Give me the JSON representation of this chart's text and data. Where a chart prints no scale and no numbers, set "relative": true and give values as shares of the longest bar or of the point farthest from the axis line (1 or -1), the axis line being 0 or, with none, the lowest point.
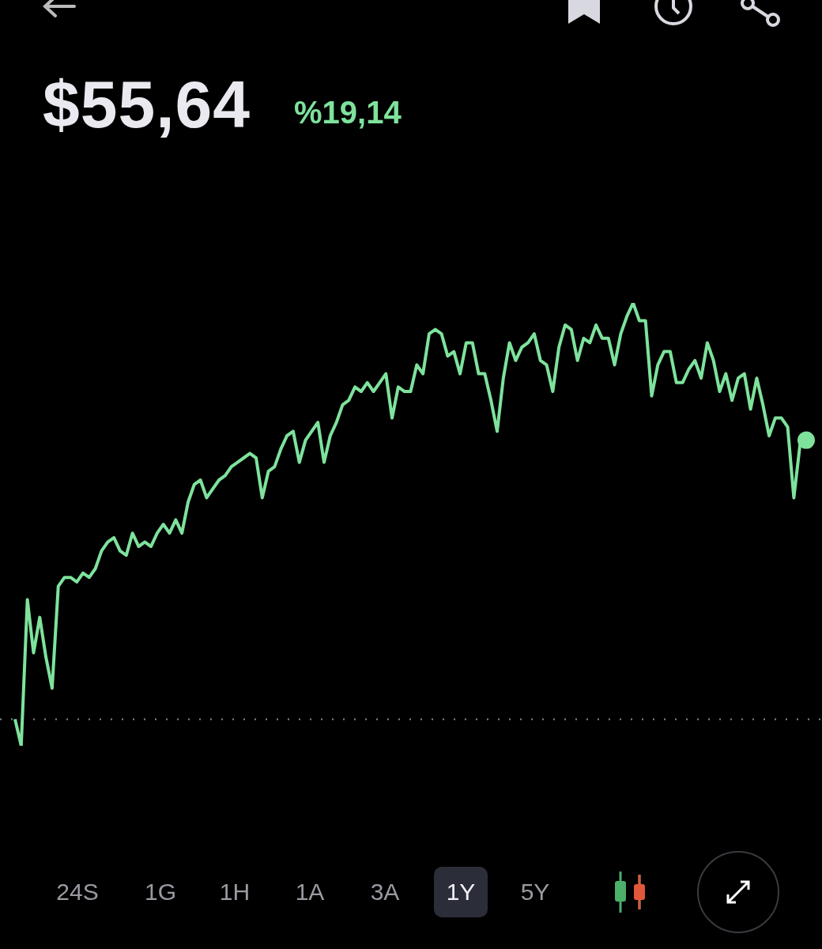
{
  "chart_data": {
    "type": "line",
    "title": "$55,64",
    "subtitle": "%19,14",
    "relative": true,
    "legend": false,
    "line_style": "solid",
    "categories": [
      null,
      null,
      null,
      null,
      null,
      null,
      null,
      null,
      null,
      null,
      null,
      null,
      null,
      null,
      null,
      null,
      null,
      null,
      null,
      null,
      null,
      null,
      null,
      null,
      null,
      null,
      null,
      null,
      null,
      null,
      null,
      null,
      null,
      null,
      null,
      null,
      null,
      null,
      null,
      null,
      null,
      null,
      null,
      null,
      null,
      null,
      null,
      null,
      null,
      null,
      null,
      null,
      null,
      null,
      null,
      null,
      null,
      null,
      null,
      null,
      null,
      null,
      null,
      null,
      null,
      null,
      null,
      null,
      null,
      null,
      null,
      null,
      null,
      null,
      null,
      null,
      null,
      null,
      null,
      null,
      null,
      null,
      null,
      null,
      null,
      null,
      null,
      null,
      null,
      null,
      null,
      null,
      null,
      null,
      null,
      null,
      null,
      null,
      null,
      null,
      null,
      null,
      null,
      null,
      null,
      null,
      null,
      null,
      null,
      null,
      null,
      null,
      null,
      null,
      null,
      null,
      null,
      null,
      null,
      null,
      null,
      null,
      null,
      null,
      null,
      null,
      null,
      null,
      null
    ],
    "series": [
      {
        "color": "#7ee29c",
        "values": [
          0.06,
          0,
          0.33,
          0.21,
          0.29,
          0.2,
          0.13,
          0.36,
          0.38,
          0.38,
          0.37,
          0.39,
          0.38,
          0.4,
          0.44,
          0.46,
          0.47,
          0.44,
          0.43,
          0.48,
          0.45,
          0.46,
          0.45,
          0.48,
          0.5,
          0.48,
          0.51,
          0.48,
          0.55,
          0.59,
          0.6,
          0.56,
          0.58,
          0.6,
          0.61,
          0.63,
          0.64,
          0.65,
          0.66,
          0.65,
          0.56,
          0.62,
          0.63,
          0.67,
          0.7,
          0.71,
          0.64,
          0.69,
          0.71,
          0.73,
          0.64,
          0.7,
          0.73,
          0.77,
          0.78,
          0.81,
          0.8,
          0.82,
          0.8,
          0.82,
          0.84,
          0.74,
          0.81,
          0.8,
          0.8,
          0.86,
          0.84,
          0.93,
          0.94,
          0.93,
          0.88,
          0.89,
          0.84,
          0.91,
          0.91,
          0.84,
          0.84,
          0.78,
          0.71,
          0.83,
          0.91,
          0.87,
          0.9,
          0.91,
          0.93,
          0.87,
          0.86,
          0.8,
          0.9,
          0.95,
          0.94,
          0.87,
          0.92,
          0.91,
          0.95,
          0.92,
          0.92,
          0.86,
          0.93,
          0.97,
          1,
          0.96,
          0.96,
          0.79,
          0.86,
          0.89,
          0.89,
          0.82,
          0.82,
          0.85,
          0.87,
          0.83,
          0.91,
          0.87,
          0.8,
          0.84,
          0.78,
          0.83,
          0.84,
          0.76,
          0.83,
          0.77,
          0.7,
          0.74,
          0.74,
          0.72,
          0.56,
          0.68,
          0.69
        ]
      }
    ],
    "ref_lines": [
      {
        "axis": "y",
        "value": 0.06,
        "color": "#8a8a8a",
        "line_style": "dotted"
      }
    ],
    "annotations": [
      "24S",
      "1G",
      "1H",
      "1A",
      "3A",
      "1Y",
      "5Y"
    ]
  }
}
